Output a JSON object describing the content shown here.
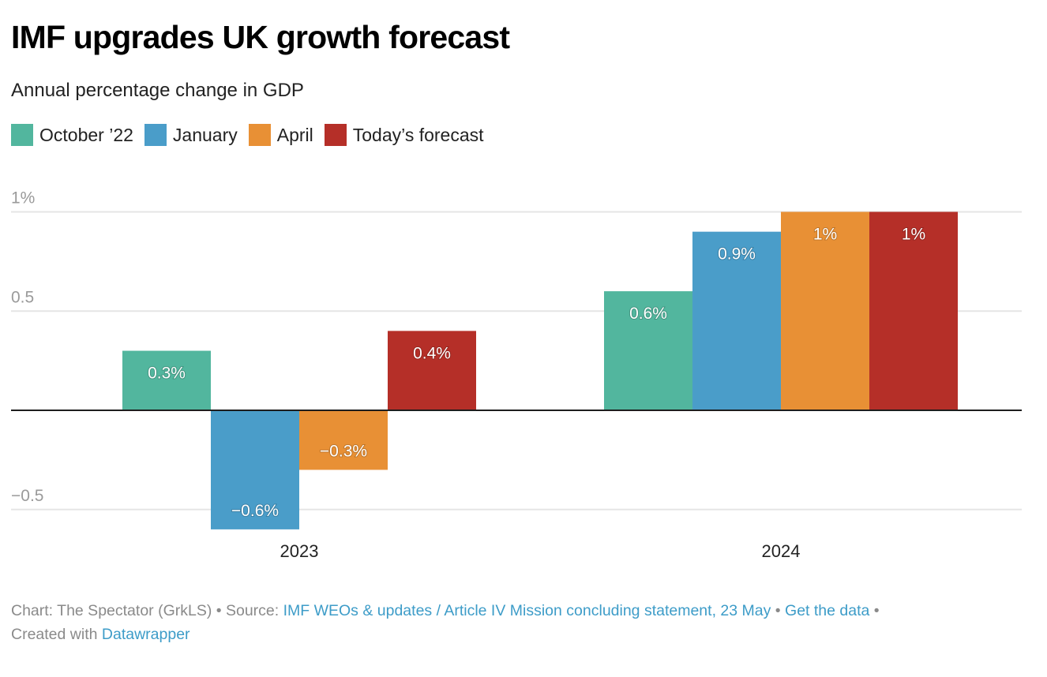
{
  "header": {
    "title": "IMF upgrades UK growth forecast",
    "subtitle": "Annual percentage change in GDP"
  },
  "legend": [
    {
      "label": "October ’22",
      "color": "#52b69e"
    },
    {
      "label": "January",
      "color": "#4a9dc9"
    },
    {
      "label": "April",
      "color": "#e89035"
    },
    {
      "label": "Today’s forecast",
      "color": "#b52f28"
    }
  ],
  "chart_data": {
    "type": "bar",
    "title": "IMF upgrades UK growth forecast",
    "subtitle": "Annual percentage change in GDP",
    "xlabel": "",
    "ylabel": "",
    "categories": [
      "2023",
      "2024"
    ],
    "series": [
      {
        "name": "October ’22",
        "color": "#52b69e",
        "values": [
          0.3,
          0.6
        ],
        "labels": [
          "0.3%",
          "0.6%"
        ]
      },
      {
        "name": "January",
        "color": "#4a9dc9",
        "values": [
          -0.6,
          0.9
        ],
        "labels": [
          "−0.6%",
          "0.9%"
        ]
      },
      {
        "name": "April",
        "color": "#e89035",
        "values": [
          -0.3,
          1.0
        ],
        "labels": [
          "−0.3%",
          "1%"
        ]
      },
      {
        "name": "Today’s forecast",
        "color": "#b52f28",
        "values": [
          0.4,
          1.0
        ],
        "labels": [
          "0.4%",
          "1%"
        ]
      }
    ],
    "yticks": [
      {
        "value": 1,
        "label": "1%"
      },
      {
        "value": 0.5,
        "label": "0.5"
      },
      {
        "value": -0.5,
        "label": "−0.5"
      }
    ],
    "ylim": [
      -0.6,
      1.0
    ],
    "grid": true,
    "legend_position": "top-left"
  },
  "footer": {
    "chart_prefix": "Chart: The Spectator (GrkLS) • Source: ",
    "source_link": "IMF WEOs & updates / Article IV Mission concluding statement, 23 May",
    "separator": " • ",
    "data_link": "Get the data",
    "trailing_sep": " •",
    "created_prefix": "Created with ",
    "created_link": "Datawrapper"
  }
}
